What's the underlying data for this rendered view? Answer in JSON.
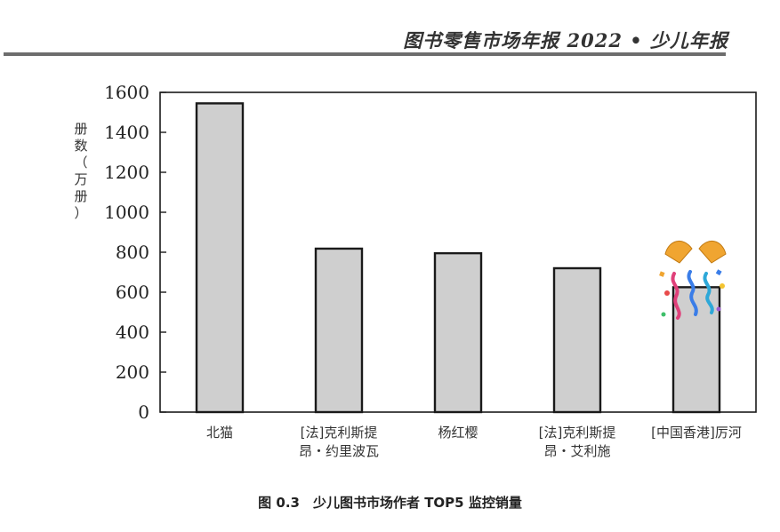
{
  "header": {
    "running_head": "图书零售市场年报 2022 • 少儿年报"
  },
  "chart_data": {
    "type": "bar",
    "categories": [
      "北猫",
      "[法]克利斯提昂・约里波瓦",
      "杨红樱",
      "[法]克利斯提昂・艾利施",
      "[中国香港]厉河"
    ],
    "category_lines": [
      [
        "北猫"
      ],
      [
        "[法]克利斯提",
        "昂・约里波瓦"
      ],
      [
        "杨红樱"
      ],
      [
        "[法]克利斯提",
        "昂・艾利施"
      ],
      [
        "[中国香港]厉河"
      ]
    ],
    "values": [
      1545,
      818,
      795,
      720,
      625
    ],
    "ylabel": "册数（万册）",
    "ylabel_chars": [
      "册",
      "数",
      "（",
      "万",
      "册",
      "）"
    ],
    "ylim": [
      0,
      1600
    ],
    "yticks": [
      0,
      200,
      400,
      600,
      800,
      1000,
      1200,
      1400,
      1600
    ],
    "grid": false,
    "bar_color": "#cfcfcf",
    "bar_stroke": "#1a1a1a"
  },
  "caption": "图 0.3　少儿图书市场作者 TOP5 监控销量",
  "decoration": {
    "sticker": "party-popper-emoji"
  }
}
